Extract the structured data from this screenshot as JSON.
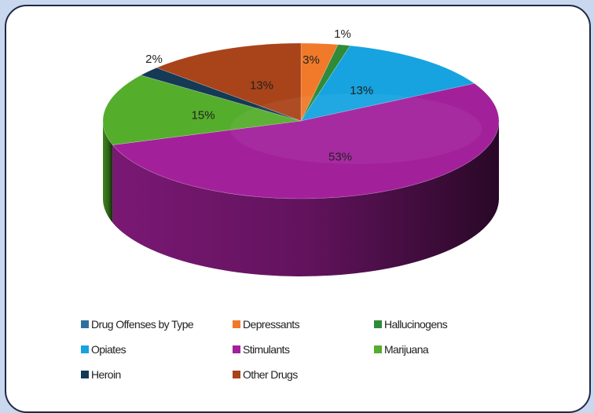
{
  "chart_data": {
    "type": "pie",
    "title": "",
    "legend_position": "bottom",
    "legend_header": "Drug Offenses by Type",
    "legend_header_color": "#2f6f9f",
    "slices": [
      {
        "name": "Depressants",
        "value": 3,
        "label": "3%",
        "color": "#f07a2a"
      },
      {
        "name": "Hallucinogens",
        "value": 1,
        "label": "1%",
        "color": "#2e8b3a"
      },
      {
        "name": "Opiates",
        "value": 13,
        "label": "13%",
        "color": "#16a3e0"
      },
      {
        "name": "Stimulants",
        "value": 53,
        "label": "53%",
        "color": "#a3209b"
      },
      {
        "name": "Marijuana",
        "value": 15,
        "label": "15%",
        "color": "#55ad2c"
      },
      {
        "name": "Heroin",
        "value": 2,
        "label": "2%",
        "color": "#143a55"
      },
      {
        "name": "Other Drugs",
        "value": 13,
        "label": "13%",
        "color": "#a9431a"
      }
    ]
  }
}
